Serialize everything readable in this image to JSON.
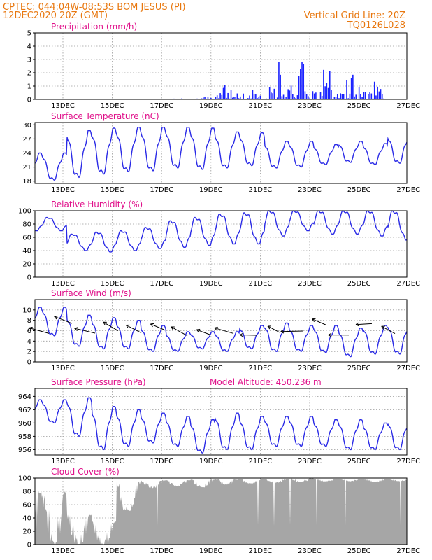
{
  "header": {
    "line1_left": "CPTEC:   044:04W-08:53S   BOM JESUS (PI)",
    "line1_right": "Vertical Grid Line: 20Z",
    "line2_left": "12DEC2020 20Z (GMT)",
    "line2_right": "TQ0126L028"
  },
  "colors": {
    "header": "#e8770e",
    "title": "#e0108a",
    "series": "#2a2ae6",
    "precip": "#1a22ff",
    "cloud": "#a6a6a6"
  },
  "chart_data": [
    {
      "type": "bar",
      "title": "Precipitation (mm/h)",
      "x_ticks": [
        "13DEC",
        "15DEC",
        "17DEC",
        "19DEC",
        "21DEC",
        "23DEC",
        "25DEC",
        "27DEC"
      ],
      "ylim": [
        0,
        5
      ],
      "y_ticks": [
        0,
        1,
        2,
        3,
        4,
        5
      ],
      "grid": true,
      "daily_max": [
        0,
        0,
        0,
        0,
        0,
        0,
        0.1,
        0.9,
        1.5,
        0.8,
        3.0,
        2.9,
        3.0,
        2.8,
        1.6
      ],
      "daily_mean": [
        0,
        0,
        0,
        0,
        0,
        0,
        0.02,
        0.3,
        0.5,
        0.25,
        1.1,
        0.9,
        1.1,
        1.0,
        0.55
      ]
    },
    {
      "type": "line",
      "title": "Surface Temperature (nC)",
      "x_ticks": [
        "13DEC",
        "15DEC",
        "17DEC",
        "19DEC",
        "21DEC",
        "23DEC",
        "25DEC",
        "27DEC"
      ],
      "ylim": [
        17.5,
        30.5
      ],
      "y_ticks": [
        18,
        21,
        24,
        27,
        30
      ],
      "grid": true,
      "daily_min": [
        18.2,
        18.8,
        19.5,
        20.0,
        20.2,
        20.8,
        20.5,
        20.8,
        21.3,
        20.8,
        21.0,
        21.5,
        22.0,
        21.5,
        21.8
      ],
      "daily_max": [
        24.0,
        28.8,
        29.3,
        29.5,
        29.5,
        29.5,
        29.3,
        28.5,
        28.3,
        26.5,
        26.5,
        25.8,
        26.5,
        26.0,
        28.0
      ]
    },
    {
      "type": "line",
      "title": "Relative Humidity (%)",
      "x_ticks": [
        "13DEC",
        "15DEC",
        "17DEC",
        "19DEC",
        "21DEC",
        "23DEC",
        "25DEC",
        "27DEC"
      ],
      "ylim": [
        0,
        100
      ],
      "y_ticks": [
        0,
        20,
        40,
        60,
        80,
        100
      ],
      "grid": true,
      "daily_min": [
        70,
        40,
        38,
        40,
        43,
        45,
        48,
        50,
        50,
        62,
        70,
        65,
        65,
        62,
        56
      ],
      "daily_max": [
        90,
        65,
        68,
        70,
        75,
        85,
        90,
        95,
        97,
        100,
        100,
        100,
        100,
        100,
        100
      ]
    },
    {
      "type": "line",
      "title": "Surface Wind (m/s)",
      "x_ticks": [
        "13DEC",
        "15DEC",
        "17DEC",
        "19DEC",
        "21DEC",
        "23DEC",
        "25DEC",
        "27DEC"
      ],
      "ylim": [
        0,
        12
      ],
      "y_ticks": [
        0,
        2,
        4,
        6,
        8,
        10
      ],
      "grid": true,
      "daily_min": [
        5,
        3,
        2.5,
        2.5,
        2,
        2,
        2.5,
        2,
        2.5,
        2,
        2,
        1.8,
        1,
        1.5,
        1.5
      ],
      "daily_max": [
        10.5,
        9,
        8.5,
        8,
        7,
        5.8,
        5.8,
        5.8,
        7,
        7.5,
        7,
        7,
        6.5,
        7,
        7.5
      ]
    },
    {
      "type": "line",
      "title": "Surface Pressure (hPa)",
      "annotation": "Model Altitude: 450.236 m",
      "x_ticks": [
        "13DEC",
        "15DEC",
        "17DEC",
        "19DEC",
        "21DEC",
        "23DEC",
        "25DEC",
        "27DEC"
      ],
      "ylim": [
        955.2,
        965.2
      ],
      "y_ticks": [
        956,
        958,
        960,
        962,
        964
      ],
      "grid": true,
      "daily_min": [
        960,
        958,
        956,
        956.5,
        957,
        956.5,
        955.5,
        956,
        956,
        956.5,
        956.5,
        956.5,
        956,
        956,
        956
      ],
      "daily_max": [
        963.5,
        963.8,
        962.5,
        962,
        961.5,
        961,
        960.5,
        961.5,
        961,
        961,
        961,
        960.5,
        960.5,
        960,
        960.5
      ]
    },
    {
      "type": "area",
      "title": "Cloud Cover (%)",
      "x_ticks": [
        "13DEC",
        "15DEC",
        "17DEC",
        "19DEC",
        "21DEC",
        "23DEC",
        "25DEC",
        "27DEC"
      ],
      "ylim": [
        0,
        100
      ],
      "y_ticks": [
        0,
        20,
        40,
        60,
        80,
        100
      ],
      "grid": true,
      "daily_max": [
        80,
        45,
        35,
        95,
        97,
        97,
        98,
        99,
        99,
        99,
        100,
        99,
        99,
        99,
        99
      ],
      "daily_min": [
        0,
        0,
        0,
        50,
        85,
        88,
        86,
        90,
        92,
        93,
        94,
        95,
        95,
        94,
        95
      ]
    }
  ]
}
